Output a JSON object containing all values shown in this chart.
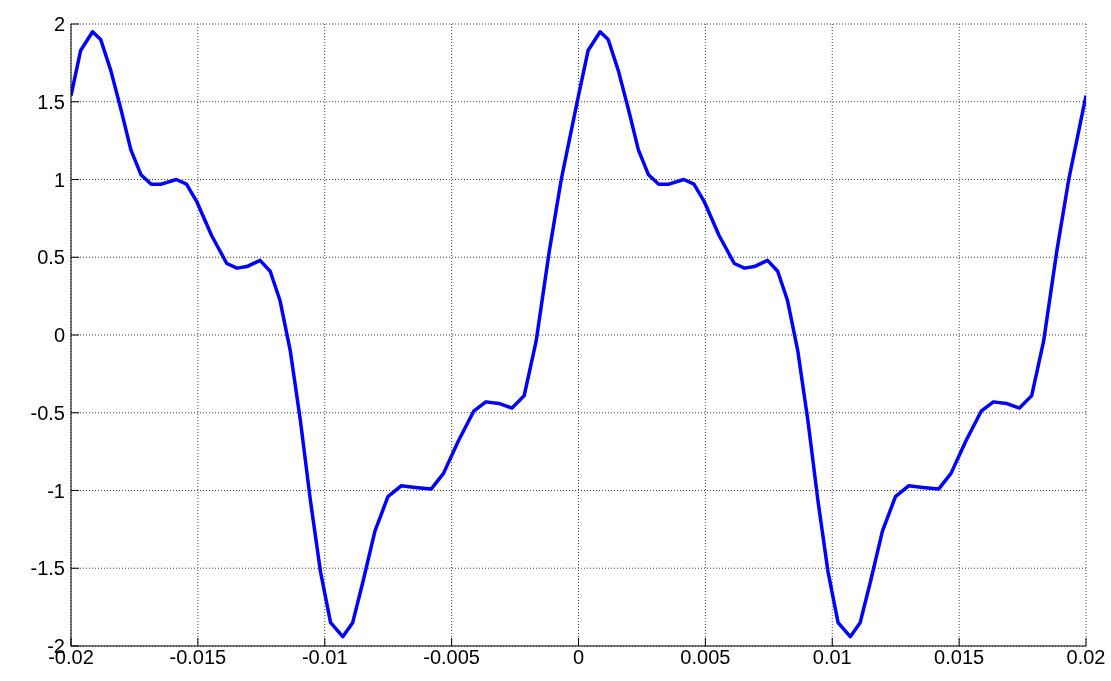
{
  "chart_data": {
    "type": "line",
    "x": [
      -0.02,
      -0.01962,
      -0.01915,
      -0.01883,
      -0.01843,
      -0.01803,
      -0.01764,
      -0.01724,
      -0.01684,
      -0.01644,
      -0.01585,
      -0.01545,
      -0.01505,
      -0.01446,
      -0.01386,
      -0.01346,
      -0.01307,
      -0.01255,
      -0.01215,
      -0.01176,
      -0.01136,
      -0.01096,
      -0.01056,
      -0.01017,
      -0.00977,
      -0.00929,
      -0.0089,
      -0.0085,
      -0.00802,
      -0.00751,
      -0.00699,
      -0.00643,
      -0.0058,
      -0.00532,
      -0.00473,
      -0.00413,
      -0.00365,
      -0.00314,
      -0.00262,
      -0.00214,
      -0.00167,
      -0.00115,
      -0.00068,
      -0.00024,
      0,
      0.00038,
      0.00085,
      0.00117,
      0.00157,
      0.00197,
      0.00236,
      0.00276,
      0.00316,
      0.00356,
      0.00415,
      0.00455,
      0.00495,
      0.00554,
      0.00614,
      0.00654,
      0.00693,
      0.00745,
      0.00785,
      0.00824,
      0.00864,
      0.00904,
      0.00944,
      0.00983,
      0.01023,
      0.01071,
      0.0111,
      0.0115,
      0.01198,
      0.01249,
      0.01301,
      0.01357,
      0.0142,
      0.01468,
      0.01527,
      0.01587,
      0.01635,
      0.01686,
      0.01738,
      0.01786,
      0.01833,
      0.01885,
      0.01932,
      0.01976,
      0.02
    ],
    "series": [
      {
        "color": "#0000ff",
        "values": [
          1.54,
          1.83,
          1.95,
          1.9,
          1.7,
          1.45,
          1.19,
          1.03,
          0.97,
          0.97,
          1.0,
          0.97,
          0.86,
          0.64,
          0.46,
          0.43,
          0.44,
          0.48,
          0.41,
          0.22,
          -0.1,
          -0.55,
          -1.07,
          -1.52,
          -1.85,
          -1.94,
          -1.85,
          -1.59,
          -1.26,
          -1.04,
          -0.97,
          -0.98,
          -0.99,
          -0.89,
          -0.68,
          -0.49,
          -0.43,
          -0.44,
          -0.47,
          -0.39,
          -0.04,
          0.54,
          1.0,
          1.35,
          1.54,
          1.83,
          1.95,
          1.9,
          1.7,
          1.45,
          1.19,
          1.03,
          0.97,
          0.97,
          1.0,
          0.97,
          0.86,
          0.64,
          0.46,
          0.43,
          0.44,
          0.48,
          0.41,
          0.22,
          -0.1,
          -0.55,
          -1.07,
          -1.52,
          -1.85,
          -1.94,
          -1.85,
          -1.59,
          -1.26,
          -1.04,
          -0.97,
          -0.98,
          -0.99,
          -0.89,
          -0.68,
          -0.49,
          -0.43,
          -0.44,
          -0.47,
          -0.39,
          -0.04,
          0.54,
          1.0,
          1.35,
          1.54
        ]
      }
    ],
    "xlim": [
      -0.02,
      0.02
    ],
    "xticks": [
      -0.02,
      -0.015,
      -0.01,
      -0.005,
      0,
      0.005,
      0.01,
      0.015,
      0.02
    ],
    "ylim": [
      -2,
      2
    ],
    "yticks": [
      -2,
      -1.5,
      -1,
      -0.5,
      0,
      0.5,
      1,
      1.5,
      2
    ],
    "grid": true,
    "marker": "none",
    "line_style": "solid"
  }
}
